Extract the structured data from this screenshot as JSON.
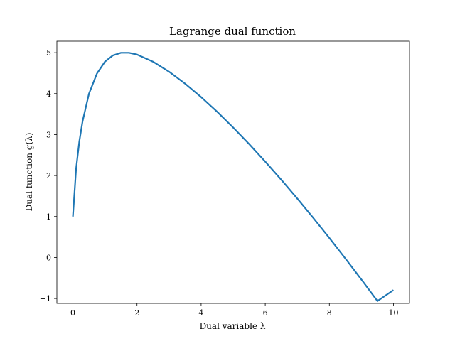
{
  "chart_data": {
    "type": "line",
    "title": "Lagrange dual function",
    "xlabel": "Dual variable λ",
    "ylabel": "Dual function g(λ)",
    "xlim": [
      -0.5,
      10.5
    ],
    "ylim": [
      -1.12,
      5.28
    ],
    "xticks": [
      0,
      2,
      4,
      6,
      8,
      10
    ],
    "xtick_labels": [
      "0",
      "2",
      "4",
      "6",
      "8",
      "10"
    ],
    "yticks": [
      -1,
      0,
      1,
      2,
      3,
      4,
      5
    ],
    "ytick_labels": [
      "−1",
      "0",
      "1",
      "2",
      "3",
      "4",
      "5"
    ],
    "grid": false,
    "color": "#1f77b4",
    "series": [
      {
        "x": [
          0,
          0.1,
          0.2,
          0.3,
          0.5,
          0.75,
          1.0,
          1.25,
          1.5,
          1.75,
          2.0,
          2.5,
          3.0,
          3.5,
          4.0,
          4.5,
          5.0,
          5.5,
          6.0,
          6.5,
          7.0,
          7.5,
          8.0,
          8.5,
          9.0,
          9.5,
          10.0
        ],
        "y": [
          1.0,
          2.166,
          2.832,
          3.317,
          3.995,
          4.491,
          4.782,
          4.935,
          4.997,
          4.997,
          4.955,
          4.78,
          4.536,
          4.244,
          3.916,
          3.557,
          3.173,
          2.767,
          2.341,
          1.898,
          1.438,
          0.964,
          0.476,
          -0.025,
          -0.538,
          -1.062,
          -0.795
        ]
      }
    ]
  }
}
